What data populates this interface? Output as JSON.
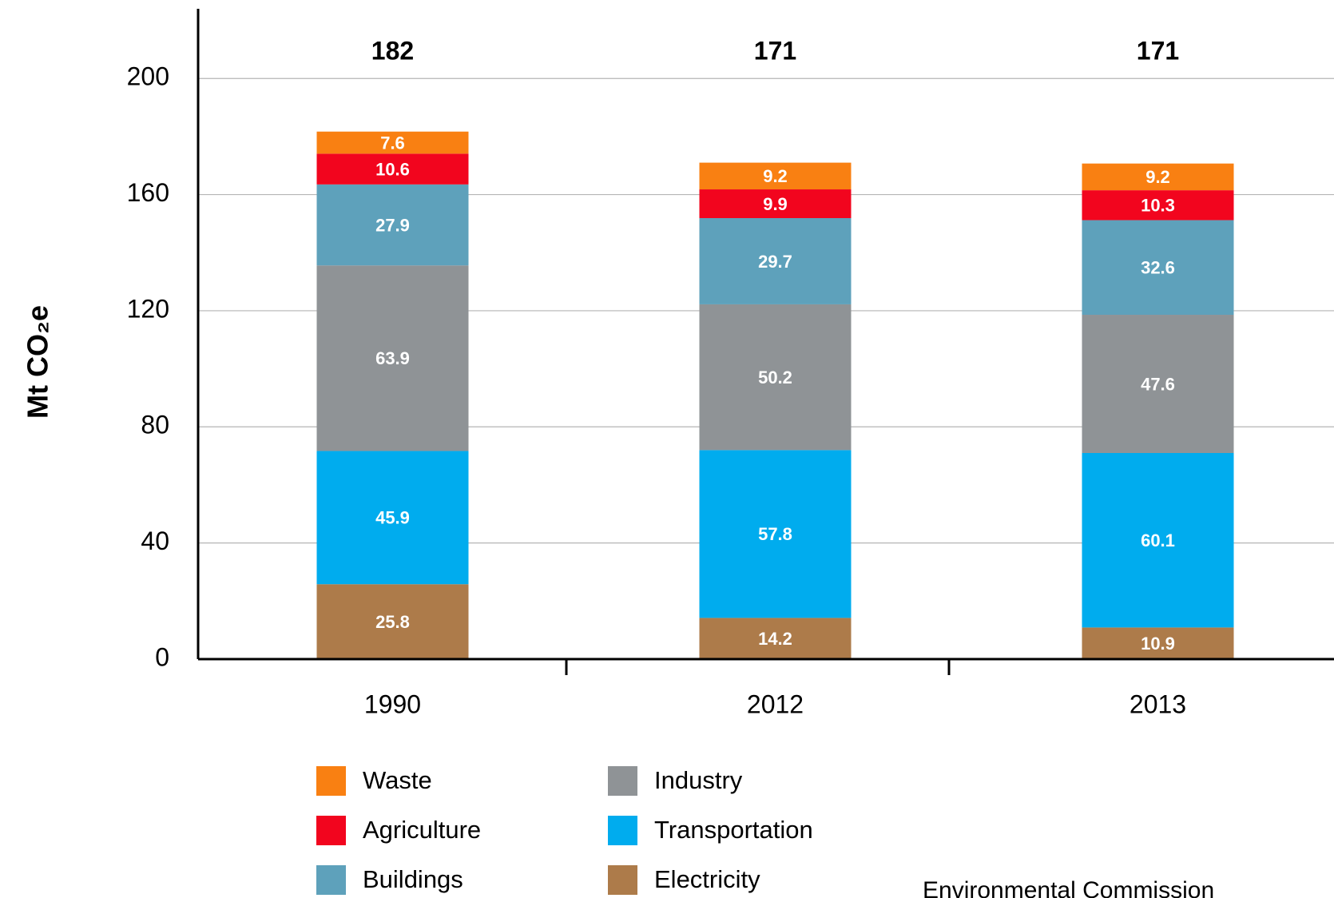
{
  "chart_data": {
    "type": "stacked_bar",
    "y_axis_label": "Mt CO₂e",
    "categories": [
      "1990",
      "2012",
      "2013"
    ],
    "totals": [
      182,
      171,
      171
    ],
    "series": [
      {
        "name": "Waste",
        "color": "#f98012",
        "values": [
          7.6,
          9.2,
          9.2
        ]
      },
      {
        "name": "Agriculture",
        "color": "#f2051e",
        "values": [
          10.6,
          9.9,
          10.3
        ]
      },
      {
        "name": "Buildings",
        "color": "#5ea1bb",
        "values": [
          27.9,
          29.7,
          32.6
        ]
      },
      {
        "name": "Industry",
        "color": "#8f9396",
        "values": [
          63.9,
          50.2,
          47.6
        ]
      },
      {
        "name": "Transportation",
        "color": "#00acee",
        "values": [
          45.9,
          57.8,
          60.1
        ]
      },
      {
        "name": "Electricity",
        "color": "#ad7b4a",
        "values": [
          25.8,
          14.2,
          10.9
        ]
      }
    ],
    "ylim": [
      0,
      224
    ],
    "yticks": [
      0,
      40,
      80,
      120,
      160,
      200
    ],
    "grid": true,
    "source": "Environmental Commission"
  }
}
